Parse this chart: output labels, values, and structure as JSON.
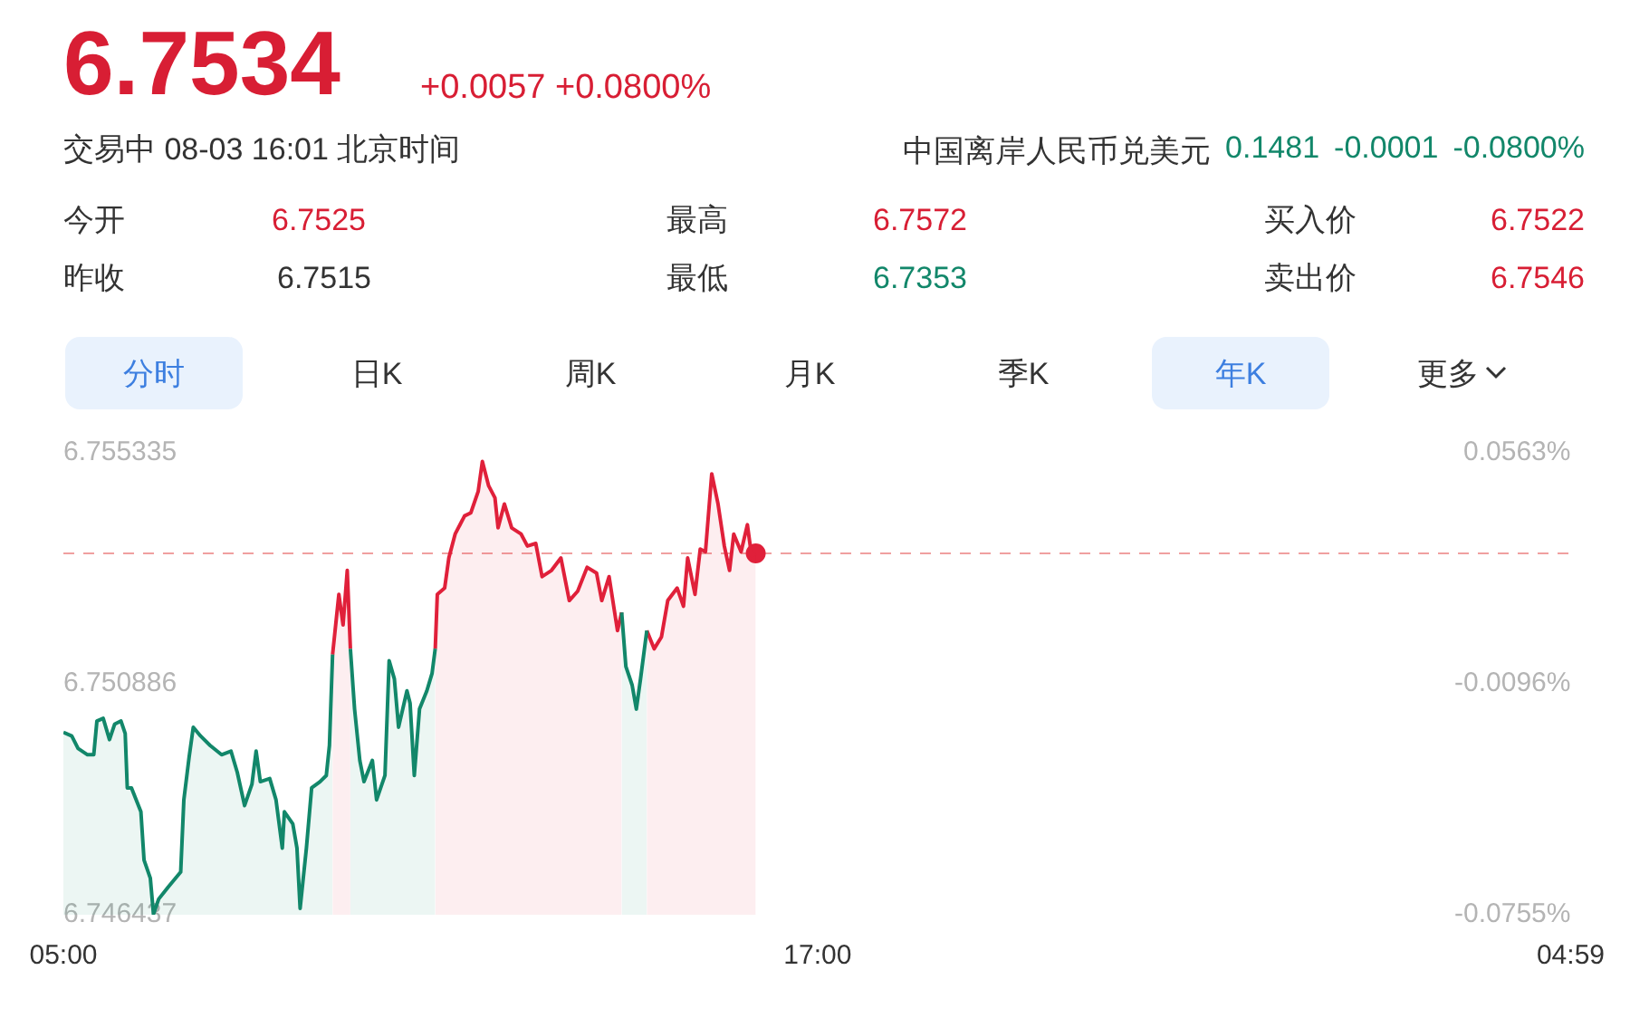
{
  "chart_data": {
    "type": "area",
    "title": "6.7534",
    "subtitle": "+0.0057 +0.0800%",
    "annotations": [
      "交易中 08-03 16:01 北京时间",
      "中国离岸人民币兑美元",
      "0.1481",
      "-0.0001",
      "-0.0800%",
      "今开",
      "6.7525",
      "昨收",
      "6.7515",
      "最高",
      "6.7572",
      "最低",
      "6.7353",
      "买入价",
      "6.7522",
      "卖出价",
      "6.7546",
      "分时",
      "日K",
      "周K",
      "月K",
      "季K",
      "年K",
      "更多"
    ],
    "x": [
      "--08-03T05:00",
      "--08-03T05:08",
      "--08-03T05:14",
      "--08-03T05:23",
      "--08-03T05:29",
      "--08-03T05:32",
      "--08-03T05:38",
      "--08-03T05:44",
      "--08-03T05:49",
      "--08-03T05:55",
      "--08-03T05:59",
      "--08-03T06:01",
      "--08-03T06:05",
      "--08-03T06:14",
      "--08-03T06:17",
      "--08-03T06:23",
      "--08-03T06:26",
      "--08-03T06:31",
      "--08-03T06:40",
      "--08-03T06:52",
      "--08-03T06:55",
      "--08-03T07:00",
      "--08-03T07:04",
      "--08-03T07:11",
      "--08-03T07:20",
      "--08-03T07:31",
      "--08-03T07:40",
      "--08-03T07:46",
      "--08-03T07:53",
      "--08-03T08:00",
      "--08-03T08:04",
      "--08-03T08:08",
      "--08-03T08:17",
      "--08-03T08:23",
      "--08-03T08:29",
      "--08-03T08:31",
      "--08-03T08:39",
      "--08-03T08:43",
      "--08-03T08:46",
      "--08-03T08:52",
      "--08-03T08:57",
      "--08-03T09:05",
      "--08-03T09:11",
      "--08-03T09:14",
      "--08-03T09:17",
      "--08-03T09:23",
      "--08-03T09:27",
      "--08-03T09:31",
      "--08-03T09:34",
      "--08-03T09:38",
      "--08-03T09:43",
      "--08-03T09:47",
      "--08-03T09:55",
      "--08-03T09:59",
      "--08-03T10:07",
      "--08-03T10:11",
      "--08-03T10:16",
      "--08-03T10:20",
      "--08-03T10:28",
      "--08-03T10:31",
      "--08-03T10:35",
      "--08-03T10:40",
      "--08-03T10:47",
      "--08-03T10:52",
      "--08-03T10:55",
      "--08-03T10:57",
      "--08-03T11:04",
      "--08-03T11:08",
      "--08-03T11:14",
      "--08-03T11:23",
      "--08-03T11:29",
      "--08-03T11:36",
      "--08-03T11:40",
      "--08-03T11:46",
      "--08-03T11:52",
      "--08-03T11:55",
      "--08-03T12:01",
      "--08-03T12:08",
      "--08-03T12:17",
      "--08-03T12:23",
      "--08-03T12:31",
      "--08-03T12:37",
      "--08-03T12:46",
      "--08-03T12:55",
      "--08-03T13:03",
      "--08-03T13:11",
      "--08-03T13:20",
      "--08-03T13:29",
      "--08-03T13:34",
      "--08-03T13:41",
      "--08-03T13:49",
      "--08-03T13:53",
      "--08-03T13:57",
      "--08-03T14:03",
      "--08-03T14:07",
      "--08-03T14:11",
      "--08-03T14:17",
      "--08-03T14:24",
      "--08-03T14:31",
      "--08-03T14:37",
      "--08-03T14:46",
      "--08-03T14:52",
      "--08-03T14:56",
      "--08-03T15:03",
      "--08-03T15:08",
      "--08-03T15:13",
      "--08-03T15:19",
      "--08-03T15:25",
      "--08-03T15:31",
      "--08-03T15:36",
      "--08-03T15:40",
      "--08-03T15:47",
      "--08-03T15:53",
      "--08-03T15:57",
      "--08-03T16:01"
    ],
    "series": [
      {
        "color": "#12876a",
        "values": [
          6.74995,
          6.74988,
          6.74964,
          6.74952,
          6.74952,
          6.75017,
          6.75022,
          6.74981,
          6.75011,
          6.75017,
          6.74993,
          6.74888,
          6.74888,
          6.74842,
          6.74749,
          6.74714,
          6.74645,
          6.74674,
          6.74697,
          6.74726,
          6.74865,
          6.74947,
          6.75005,
          6.74988,
          6.7497,
          6.74952,
          6.74959,
          6.74918,
          6.74854,
          6.74895,
          6.74959,
          6.749,
          6.74906,
          6.74865,
          6.74772,
          6.74842,
          6.74819,
          6.74772,
          6.74656,
          6.74772,
          6.74888,
          6.749,
          6.74912,
          6.7497,
          6.75145,
          null,
          null,
          null,
          6.75156,
          6.7504,
          6.74941,
          6.749,
          6.74941,
          6.74865,
          6.74912,
          6.75133,
          6.75098,
          6.75005,
          6.75075,
          6.75051,
          6.74912,
          6.7504,
          6.75075,
          6.75109,
          6.75156,
          null,
          null,
          null,
          null,
          null,
          null,
          null,
          null,
          null,
          null,
          null,
          null,
          null,
          null,
          null,
          null,
          null,
          null,
          null,
          null,
          null,
          null,
          null,
          null,
          null,
          null,
          6.75226,
          6.75122,
          6.75086,
          6.7504,
          6.75098,
          6.75191,
          null,
          null,
          null,
          null,
          null,
          null,
          null,
          null,
          null,
          null,
          null,
          null,
          null,
          null,
          null,
          null,
          null,
          null
        ]
      },
      {
        "color": "#e0203a",
        "values": [
          null,
          null,
          null,
          null,
          null,
          null,
          null,
          null,
          null,
          null,
          null,
          null,
          null,
          null,
          null,
          null,
          null,
          null,
          null,
          null,
          null,
          null,
          null,
          null,
          null,
          null,
          null,
          null,
          null,
          null,
          null,
          null,
          null,
          null,
          null,
          null,
          null,
          null,
          null,
          null,
          null,
          null,
          null,
          null,
          6.75145,
          6.75261,
          6.75202,
          6.75307,
          6.75156,
          null,
          null,
          null,
          null,
          null,
          null,
          null,
          null,
          null,
          null,
          null,
          null,
          null,
          null,
          null,
          6.75156,
          6.75261,
          6.75273,
          6.75331,
          6.75377,
          6.75412,
          6.75418,
          6.75459,
          6.75517,
          6.7547,
          6.75447,
          6.75389,
          6.75435,
          6.75389,
          6.75377,
          6.75354,
          6.75359,
          6.75295,
          6.75307,
          6.75331,
          6.75249,
          6.75267,
          6.75313,
          6.75302,
          6.75249,
          6.75295,
          6.75191,
          6.75226,
          null,
          null,
          null,
          null,
          6.75191,
          6.75156,
          6.75179,
          6.75249,
          6.75273,
          6.75238,
          6.75331,
          6.75261,
          6.75348,
          6.75343,
          6.75493,
          6.75435,
          6.75354,
          6.75307,
          6.75377,
          6.75343,
          6.75395,
          6.75336,
          6.7534
        ]
      },
      {
        "type": "scatter",
        "marker": "circle",
        "color": "#e0203a",
        "x": [
          "--08-03T16:01"
        ],
        "values": [
          6.7534
        ]
      }
    ],
    "ref_lines": [
      {
        "axis": "y",
        "value": 6.7534,
        "color": "#f0a0a0",
        "line_style": "dashed"
      }
    ],
    "xlim": [
      "--08-03T05:00",
      "--08-04T04:59"
    ],
    "xticks": [
      {
        "value": "--08-03T05:00",
        "label": "05:00"
      },
      {
        "value": "--08-03T17:00",
        "label": "17:00"
      },
      {
        "value": "--08-04T04:59",
        "label": "04:59"
      }
    ],
    "ylim": [
      6.746437,
      6.755335
    ],
    "yticks": [
      6.746437,
      6.750886,
      6.755335
    ],
    "y2lim": [
      -0.0755,
      0.0563
    ],
    "y2ticks": [
      {
        "value": -0.0755,
        "label": "-0.0755%"
      },
      {
        "value": -0.0096,
        "label": "-0.0096%"
      },
      {
        "value": 0.0563,
        "label": "0.0563%"
      }
    ],
    "marker": "none",
    "legend": false,
    "grid": false
  }
}
